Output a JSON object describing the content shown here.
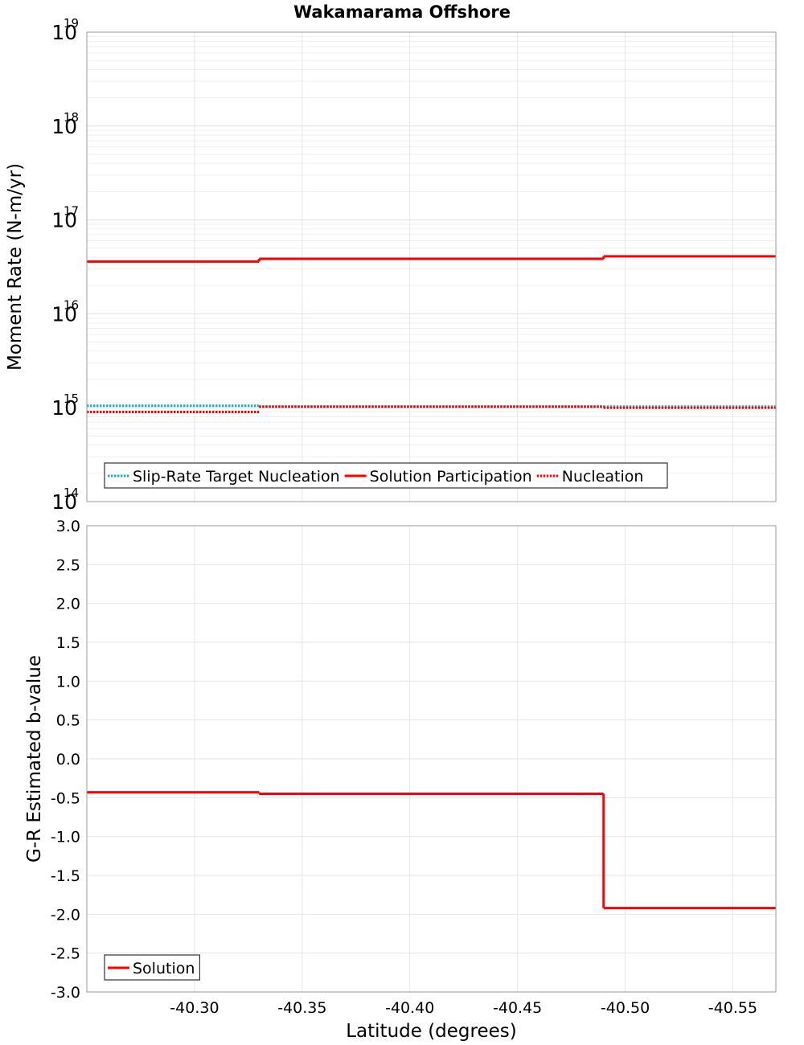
{
  "title": "Wakamarama Offshore",
  "chart_data": [
    {
      "type": "line",
      "panel": "top",
      "title": "Wakamarama Offshore",
      "xlabel": "Latitude (degrees)",
      "ylabel": "Moment Rate (N-m/yr)",
      "yscale": "log",
      "xlim": [
        -40.25,
        -40.57
      ],
      "ylim_exp": [
        14,
        19
      ],
      "y_ticks": [
        {
          "base": "10",
          "exp": "14",
          "e": 14
        },
        {
          "base": "10",
          "exp": "15",
          "e": 15
        },
        {
          "base": "10",
          "exp": "16",
          "e": 16
        },
        {
          "base": "10",
          "exp": "17",
          "e": 17
        },
        {
          "base": "10",
          "exp": "18",
          "e": 18
        },
        {
          "base": "10",
          "exp": "19",
          "e": 19
        }
      ],
      "legend": {
        "placement": "bottom-left"
      },
      "series": [
        {
          "name": "Slip-Rate Target Nucleation",
          "color": "#1ab0c8",
          "style": "dotted",
          "steps": [
            {
              "x0": -40.25,
              "x1": -40.33,
              "y": 1050000000000000.0
            },
            {
              "x0": -40.33,
              "x1": -40.49,
              "y": 1020000000000000.0
            },
            {
              "x0": -40.49,
              "x1": -40.57,
              "y": 1030000000000000.0
            }
          ]
        },
        {
          "name": "Solution Participation",
          "color": "#ff0000",
          "style": "solid",
          "steps": [
            {
              "x0": -40.25,
              "x1": -40.33,
              "y": 3.6e+16
            },
            {
              "x0": -40.33,
              "x1": -40.49,
              "y": 3.85e+16
            },
            {
              "x0": -40.49,
              "x1": -40.57,
              "y": 4.1e+16
            }
          ]
        },
        {
          "name": "Nucleation",
          "color": "#ff0000",
          "style": "dotted",
          "steps": [
            {
              "x0": -40.25,
              "x1": -40.33,
              "y": 900000000000000.0
            },
            {
              "x0": -40.33,
              "x1": -40.49,
              "y": 1030000000000000.0
            },
            {
              "x0": -40.49,
              "x1": -40.57,
              "y": 1000000000000000.0
            }
          ]
        }
      ]
    },
    {
      "type": "line",
      "panel": "bottom",
      "xlabel": "Latitude (degrees)",
      "ylabel": "G-R Estimated b-value",
      "xlim": [
        -40.25,
        -40.57
      ],
      "ylim": [
        -3.0,
        3.0
      ],
      "y_ticks": [
        "3.0",
        "2.5",
        "2.0",
        "1.5",
        "1.0",
        "0.5",
        "0.0",
        "-0.5",
        "-1.0",
        "-1.5",
        "-2.0",
        "-2.5",
        "-3.0"
      ],
      "x_ticks": [
        "-40.30",
        "-40.35",
        "-40.40",
        "-40.45",
        "-40.50",
        "-40.55"
      ],
      "legend": {
        "placement": "bottom-left"
      },
      "series": [
        {
          "name": "Solution",
          "color": "#ff0000",
          "style": "solid",
          "steps": [
            {
              "x0": -40.25,
              "x1": -40.33,
              "y": -0.43
            },
            {
              "x0": -40.33,
              "x1": -40.49,
              "y": -0.45
            },
            {
              "x0": -40.49,
              "x1": -40.57,
              "y": -1.92
            }
          ]
        }
      ]
    }
  ]
}
